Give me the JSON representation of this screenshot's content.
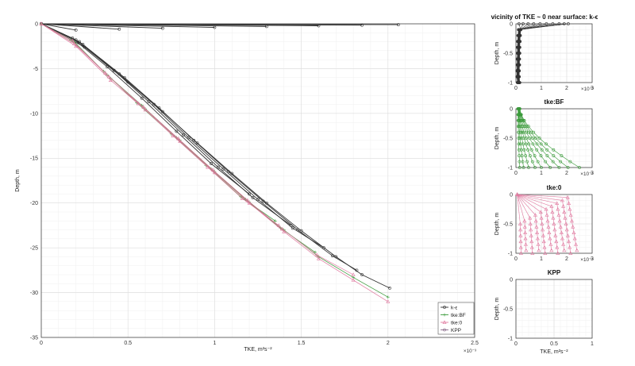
{
  "chart_data": [
    {
      "type": "line",
      "title": "",
      "xlabel": "TKE, m²s⁻²",
      "ylabel": "Depth, m",
      "xlim": [
        0,
        2.5
      ],
      "ylim": [
        -35,
        0
      ],
      "x_exponent": "×10⁻³",
      "xticks": [
        "0",
        "0.5",
        "1",
        "1.5",
        "2",
        "2.5"
      ],
      "yticks": [
        "-35",
        "-30",
        "-25",
        "-20",
        "-15",
        "-10",
        "-5",
        "0"
      ],
      "grid": true,
      "legend_position": "bottom-right",
      "legend": [
        "k-ϵ",
        "tke:BF",
        "tke:0",
        "KPP"
      ],
      "colors": {
        "k-eps": "#333333",
        "tke_bf": "#3a9a3a",
        "tke_0": "#e07aa0",
        "kpp": "#8a6a8a"
      },
      "series": [
        {
          "name": "k-ϵ",
          "profiles": [
            {
              "x": [
                0,
                2.06
              ],
              "y": [
                0,
                -0.1
              ]
            },
            {
              "x": [
                0,
                1.85
              ],
              "y": [
                0,
                -0.15
              ]
            },
            {
              "x": [
                0,
                1.6
              ],
              "y": [
                0,
                -0.22
              ]
            },
            {
              "x": [
                0,
                1.3
              ],
              "y": [
                0,
                -0.3
              ]
            },
            {
              "x": [
                0,
                1.0
              ],
              "y": [
                0,
                -0.4
              ]
            },
            {
              "x": [
                0,
                0.7
              ],
              "y": [
                0,
                -0.5
              ]
            },
            {
              "x": [
                0,
                0.45
              ],
              "y": [
                0,
                -0.6
              ]
            },
            {
              "x": [
                0,
                0.2
              ],
              "y": [
                0,
                -0.7
              ]
            },
            {
              "x": [
                0,
                0.25,
                0.5,
                0.7,
                0.9,
                1.1,
                1.3,
                1.5,
                1.7,
                1.85,
                2.01
              ],
              "y": [
                0,
                -2.6,
                -6.5,
                -9.8,
                -13.3,
                -16.7,
                -20.0,
                -23.1,
                -26.0,
                -28.0,
                -29.5
              ]
            },
            {
              "x": [
                0,
                0.24,
                0.48,
                0.68,
                0.88,
                1.08,
                1.28,
                1.48,
                1.68,
                1.82
              ],
              "y": [
                0,
                -2.3,
                -6.0,
                -9.4,
                -13.0,
                -16.5,
                -19.8,
                -23.0,
                -25.9,
                -27.5
              ]
            },
            {
              "x": [
                0,
                0.22,
                0.45,
                0.65,
                0.85,
                1.05,
                1.25,
                1.45,
                1.63
              ],
              "y": [
                0,
                -2.0,
                -5.6,
                -9.0,
                -12.7,
                -16.2,
                -19.6,
                -22.8,
                -25.0
              ]
            },
            {
              "x": [
                0,
                0.2,
                0.42,
                0.62,
                0.82,
                1.02,
                1.22,
                1.44
              ],
              "y": [
                0,
                -1.8,
                -5.2,
                -8.7,
                -12.4,
                -16.0,
                -19.4,
                -22.5
              ]
            },
            {
              "x": [
                0,
                0.18,
                0.38,
                0.58,
                0.78,
                0.98,
                1.2
              ],
              "y": [
                0,
                -1.6,
                -4.8,
                -8.3,
                -12.0,
                -15.6,
                -19.0
              ]
            }
          ]
        },
        {
          "name": "tke:BF",
          "profiles": [
            {
              "x": [
                0,
                0.2,
                0.4,
                0.6,
                0.8,
                1.0,
                1.2,
                1.4,
                1.6,
                1.8,
                2.0
              ],
              "y": [
                0,
                -2.3,
                -6.1,
                -9.5,
                -13.0,
                -16.5,
                -19.9,
                -23.0,
                -26.0,
                -28.3,
                -30.5
              ]
            },
            {
              "x": [
                0,
                0.19,
                0.38,
                0.58,
                0.78,
                0.98,
                1.18,
                1.38,
                1.58
              ],
              "y": [
                0,
                -2.0,
                -5.7,
                -9.1,
                -12.7,
                -16.2,
                -19.6,
                -22.8,
                -25.5
              ]
            },
            {
              "x": [
                0,
                0.17,
                0.36,
                0.55,
                0.75,
                0.95,
                1.15,
                1.35
              ],
              "y": [
                0,
                -1.8,
                -5.3,
                -8.8,
                -12.3,
                -15.8,
                -19.3,
                -22.0
              ]
            }
          ]
        },
        {
          "name": "tke:0",
          "profiles": [
            {
              "x": [
                0,
                0.2,
                0.4,
                0.6,
                0.8,
                1.0,
                1.2,
                1.4,
                1.6,
                1.8,
                2.0
              ],
              "y": [
                0,
                -2.5,
                -6.3,
                -9.6,
                -13.1,
                -16.6,
                -20.0,
                -23.2,
                -26.2,
                -28.6,
                -31.0
              ]
            },
            {
              "x": [
                0,
                0.19,
                0.39,
                0.59,
                0.79,
                0.99,
                1.19,
                1.39,
                1.59,
                1.8
              ],
              "y": [
                0,
                -2.2,
                -5.9,
                -9.3,
                -12.8,
                -16.3,
                -19.7,
                -22.9,
                -25.8,
                -28.0
              ]
            },
            {
              "x": [
                0,
                0.18,
                0.37,
                0.56,
                0.76,
                0.96,
                1.16,
                1.37
              ],
              "y": [
                0,
                -1.9,
                -5.5,
                -8.9,
                -12.5,
                -16.0,
                -19.5,
                -22.5
              ]
            }
          ]
        },
        {
          "name": "KPP",
          "profiles": []
        }
      ]
    },
    {
      "type": "line",
      "title": "vicinity of TKE ~ 0 near surface: k-ϵ",
      "xlabel": "",
      "ylabel": "Depth, m",
      "xlim": [
        0,
        3
      ],
      "ylim": [
        -1,
        0
      ],
      "x_exponent": "×10⁻³",
      "xticks": [
        "0",
        "1",
        "2",
        "3"
      ],
      "yticks": [
        "-1",
        "-0.5",
        "0"
      ],
      "grid": true,
      "series": [
        {
          "name": "k-ϵ",
          "color": "#333333",
          "endpoints": [
            2.06,
            1.9,
            1.7,
            1.45,
            1.2,
            0.95,
            0.7,
            0.48,
            0.28,
            0.12
          ],
          "surface_y": [
            0,
            -0.03,
            -0.06,
            -0.1,
            -0.14,
            -0.19,
            -0.25,
            -0.32,
            -0.4,
            -0.5
          ]
        }
      ]
    },
    {
      "type": "line",
      "title": "tke:BF",
      "xlabel": "",
      "ylabel": "Depth, m",
      "xlim": [
        0,
        3
      ],
      "ylim": [
        -1,
        0
      ],
      "x_exponent": "×10⁻⁴",
      "xticks": [
        "0",
        "1",
        "2",
        "3"
      ],
      "yticks": [
        "-1",
        "-0.5",
        "0"
      ],
      "grid": true,
      "series": [
        {
          "name": "tke:BF",
          "color": "#3a9a3a",
          "bottom_x": [
            2.5,
            2.05,
            1.7,
            1.35,
            1.0,
            0.75,
            0.5,
            0.3,
            0.15
          ],
          "top_x": [
            0.15,
            0.15,
            0.14,
            0.13,
            0.12,
            0.11,
            0.1,
            0.09,
            0.08
          ]
        }
      ]
    },
    {
      "type": "line",
      "title": "tke:0",
      "xlabel": "",
      "ylabel": "Depth, m",
      "xlim": [
        0,
        3
      ],
      "ylim": [
        -1,
        0
      ],
      "x_exponent": "×10⁻⁴",
      "xticks": [
        "0",
        "1",
        "2",
        "3"
      ],
      "yticks": [
        "-1",
        "-0.5",
        "0"
      ],
      "grid": true,
      "series": [
        {
          "name": "tke:0",
          "color": "#e07aa0",
          "top_y": [
            -0.05,
            -0.1,
            -0.15,
            -0.2,
            -0.25,
            -0.3,
            -0.35,
            -0.4,
            -0.45,
            -0.5
          ],
          "bottom_x": [
            2.4,
            2.15,
            1.9,
            1.65,
            1.4,
            1.15,
            0.9,
            0.65,
            0.4,
            0.2
          ]
        }
      ]
    },
    {
      "type": "line",
      "title": "KPP",
      "xlabel": "TKE, m²s⁻²",
      "ylabel": "Depth, m",
      "xlim": [
        0,
        1
      ],
      "ylim": [
        -1,
        0
      ],
      "xticks": [
        "0",
        "0.5",
        "1"
      ],
      "yticks": [
        "-1",
        "-0.5",
        "0"
      ],
      "grid": true,
      "series": []
    }
  ]
}
